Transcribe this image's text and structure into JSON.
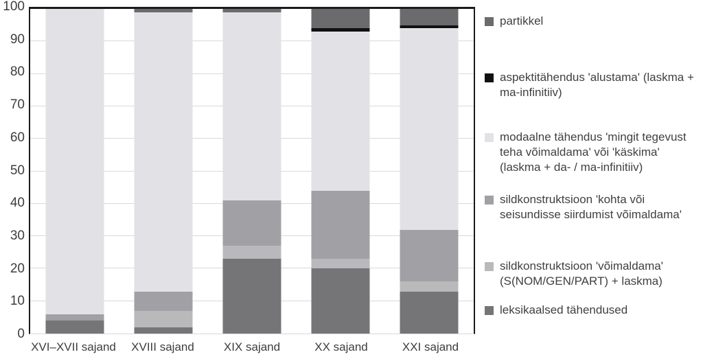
{
  "chart_data": {
    "type": "bar",
    "stacked": true,
    "orientation": "vertical",
    "grid": "horizontal",
    "legend_position": "right",
    "background": "#ffffff",
    "gridline_color": "#d9d9d9",
    "categories": [
      "XVI–XVII sajand",
      "XVIII sajand",
      "XIX sajand",
      "XX sajand",
      "XXI sajand"
    ],
    "series": [
      {
        "name": "leksikaalsed tähendused",
        "color": "#757578",
        "values": [
          4,
          2,
          23,
          20,
          13
        ]
      },
      {
        "name": "sildkonstruktsioon 'võimaldama' (S(NOM/GEN/PART) + laskma)",
        "color": "#b9b9bc",
        "values": [
          0,
          5,
          4,
          3,
          3
        ]
      },
      {
        "name": "sildkonstruktsioon 'kohta või seisundisse siirdumist võimaldama'",
        "color": "#a1a1a5",
        "values": [
          2,
          6,
          14,
          21,
          16
        ]
      },
      {
        "name": "modaalne tähendus 'mingit tegevust teha võimaldama' või 'käskima' (laskma + da- / ma-infinitiiv)",
        "color": "#e2e2e6",
        "values": [
          94,
          86,
          58,
          49,
          62
        ]
      },
      {
        "name": "aspektitähendus 'alustama' (laskma + ma-infinitiiv)",
        "color": "#111111",
        "values": [
          0,
          0,
          0,
          1,
          1
        ]
      },
      {
        "name": "partikkel",
        "color": "#6b6b6e",
        "values": [
          0,
          1,
          1,
          6,
          5
        ]
      }
    ],
    "ylim": [
      0,
      100
    ],
    "yticks": [
      0,
      10,
      20,
      30,
      40,
      50,
      60,
      70,
      80,
      90,
      100
    ],
    "xlabel": "",
    "ylabel": "",
    "title": ""
  },
  "axis": {
    "y_tick_labels": [
      "0",
      "10",
      "20",
      "30",
      "40",
      "50",
      "60",
      "70",
      "80",
      "90",
      "100"
    ]
  },
  "legend": {
    "items": [
      {
        "label": "partikkel",
        "color": "#6b6b6e"
      },
      {
        "label": "aspektitähendus 'alustama' (laskma + ma-infinitiiv)",
        "color": "#111111"
      },
      {
        "label": "modaalne tähendus 'mingit tegevust teha võimaldama' või 'käskima' (laskma + da- / ma-infinitiiv)",
        "color": "#e2e2e6"
      },
      {
        "label": "sildkonstruktsioon 'kohta või seisundisse siirdumist võimaldama'",
        "color": "#a1a1a5"
      },
      {
        "label": "sildkonstruktsioon 'võimaldama' (S(NOM/GEN/PART) + laskma)",
        "color": "#b9b9bc"
      },
      {
        "label": "leksikaalsed tähendused",
        "color": "#757578"
      }
    ]
  }
}
